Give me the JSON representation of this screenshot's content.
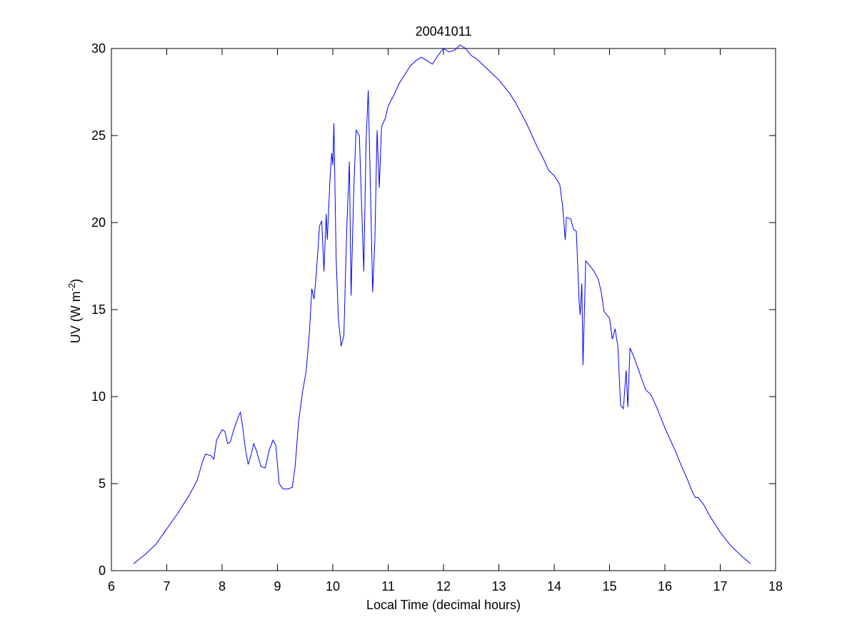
{
  "chart_data": {
    "type": "line",
    "title": "20041011",
    "xlabel": "Local Time (decimal hours)",
    "ylabel": {
      "text": "UV (W m",
      "superscript": "-2",
      "suffix": ")"
    },
    "xlim": [
      6,
      18
    ],
    "xticks": [
      6,
      7,
      8,
      9,
      10,
      11,
      12,
      13,
      14,
      15,
      16,
      17,
      18
    ],
    "ylim": [
      0,
      30
    ],
    "yticks": [
      0,
      5,
      10,
      15,
      20,
      25,
      30
    ],
    "grid": false,
    "series": [
      {
        "color": "#0000ff",
        "x": [
          6.4,
          6.6,
          6.8,
          7.0,
          7.2,
          7.4,
          7.55,
          7.65,
          7.7,
          7.8,
          7.85,
          7.9,
          8.0,
          8.05,
          8.1,
          8.15,
          8.2,
          8.3,
          8.33,
          8.37,
          8.42,
          8.47,
          8.52,
          8.57,
          8.62,
          8.7,
          8.78,
          8.85,
          8.92,
          8.97,
          9.03,
          9.1,
          9.2,
          9.27,
          9.32,
          9.38,
          9.45,
          9.52,
          9.58,
          9.62,
          9.66,
          9.7,
          9.76,
          9.8,
          9.84,
          9.88,
          9.9,
          9.95,
          9.98,
          10.0,
          10.02,
          10.06,
          10.1,
          10.15,
          10.2,
          10.25,
          10.3,
          10.33,
          10.38,
          10.42,
          10.48,
          10.52,
          10.56,
          10.6,
          10.64,
          10.68,
          10.72,
          10.76,
          10.8,
          10.84,
          10.88,
          10.95,
          11.0,
          11.1,
          11.2,
          11.3,
          11.4,
          11.5,
          11.6,
          11.7,
          11.8,
          11.9,
          12.0,
          12.1,
          12.2,
          12.3,
          12.4,
          12.5,
          12.6,
          12.7,
          12.8,
          12.9,
          13.0,
          13.1,
          13.2,
          13.3,
          13.4,
          13.5,
          13.6,
          13.7,
          13.8,
          13.9,
          14.0,
          14.1,
          14.15,
          14.2,
          14.22,
          14.3,
          14.35,
          14.4,
          14.45,
          14.47,
          14.5,
          14.52,
          14.57,
          14.65,
          14.72,
          14.8,
          14.85,
          14.9,
          15.0,
          15.05,
          15.1,
          15.15,
          15.2,
          15.25,
          15.3,
          15.33,
          15.37,
          15.45,
          15.55,
          15.65,
          15.75,
          15.85,
          16.0,
          16.1,
          16.2,
          16.3,
          16.4,
          16.5,
          16.55,
          16.6,
          16.7,
          16.8,
          17.0,
          17.2,
          17.4,
          17.55
        ],
        "values": [
          0.4,
          0.9,
          1.5,
          2.4,
          3.3,
          4.3,
          5.2,
          6.3,
          6.7,
          6.6,
          6.4,
          7.5,
          8.1,
          8.0,
          7.3,
          7.4,
          8.0,
          8.9,
          9.1,
          8.3,
          7.0,
          6.1,
          6.6,
          7.3,
          6.9,
          6.0,
          5.9,
          6.9,
          7.5,
          7.2,
          5.0,
          4.7,
          4.7,
          4.8,
          6.0,
          8.5,
          10.2,
          11.5,
          13.8,
          16.2,
          15.6,
          17,
          19.8,
          20.1,
          17.2,
          20.5,
          19,
          22.5,
          24.0,
          23.3,
          25.7,
          18,
          14.5,
          12.9,
          13.5,
          19.5,
          23.5,
          15.8,
          22,
          25.3,
          25,
          21,
          17.2,
          24.5,
          27.6,
          22,
          16,
          19,
          25.3,
          22,
          25.5,
          26,
          26.7,
          27.3,
          28.0,
          28.5,
          29.0,
          29.3,
          29.5,
          29.3,
          29.1,
          29.6,
          30.0,
          29.8,
          29.9,
          30.2,
          30.0,
          29.6,
          29.4,
          29.1,
          28.8,
          28.5,
          28.2,
          27.8,
          27.4,
          26.9,
          26.3,
          25.7,
          25.0,
          24.3,
          23.7,
          23.0,
          22.7,
          22.2,
          21,
          19,
          20.3,
          20.2,
          19.6,
          19.5,
          15.5,
          14.7,
          16.5,
          11.8,
          17.8,
          17.5,
          17.2,
          16.7,
          16.0,
          14.9,
          14.5,
          13.3,
          13.9,
          12.9,
          9.5,
          9.3,
          11.5,
          9.4,
          12.8,
          12.2,
          11.3,
          10.4,
          10.1,
          9.4,
          8.2,
          7.5,
          6.8,
          6.0,
          5.3,
          4.5,
          4.2,
          4.2,
          3.8,
          3.2,
          2.2,
          1.4,
          0.8,
          0.4
        ]
      }
    ]
  }
}
